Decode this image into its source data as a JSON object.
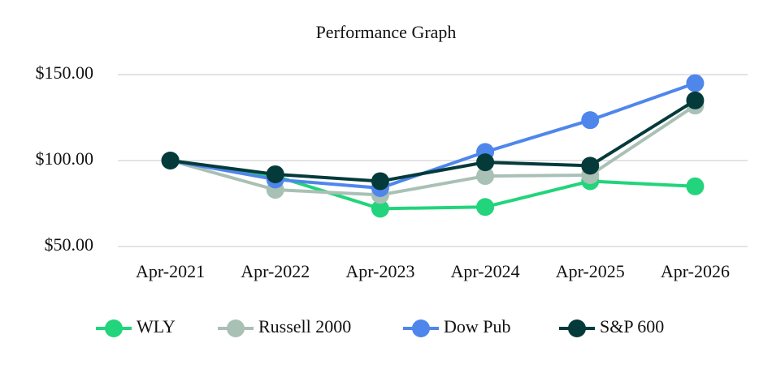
{
  "chart_data": {
    "type": "line",
    "title": "Performance Graph",
    "categories": [
      "Apr-2021",
      "Apr-2022",
      "Apr-2023",
      "Apr-2024",
      "Apr-2025",
      "Apr-2026"
    ],
    "series": [
      {
        "name": "WLY",
        "color": "#22d47b",
        "values": [
          100,
          91,
          72,
          73,
          88,
          85
        ]
      },
      {
        "name": "Russell 2000",
        "color": "#a9c0b5",
        "values": [
          100,
          83,
          80,
          91,
          91.5,
          132
        ]
      },
      {
        "name": "Dow Pub",
        "color": "#4f86ec",
        "values": [
          100,
          89,
          84,
          105,
          123.5,
          145
        ]
      },
      {
        "name": "S&P 600",
        "color": "#053a3b",
        "values": [
          100,
          92,
          88,
          99,
          97,
          135
        ]
      }
    ],
    "ylim": [
      50,
      150
    ],
    "yticks": [
      {
        "value": 50,
        "label": "$50.00"
      },
      {
        "value": 100,
        "label": "$100.00"
      },
      {
        "value": 150,
        "label": "$150.00"
      }
    ],
    "grid": true,
    "legend": "bottom"
  }
}
